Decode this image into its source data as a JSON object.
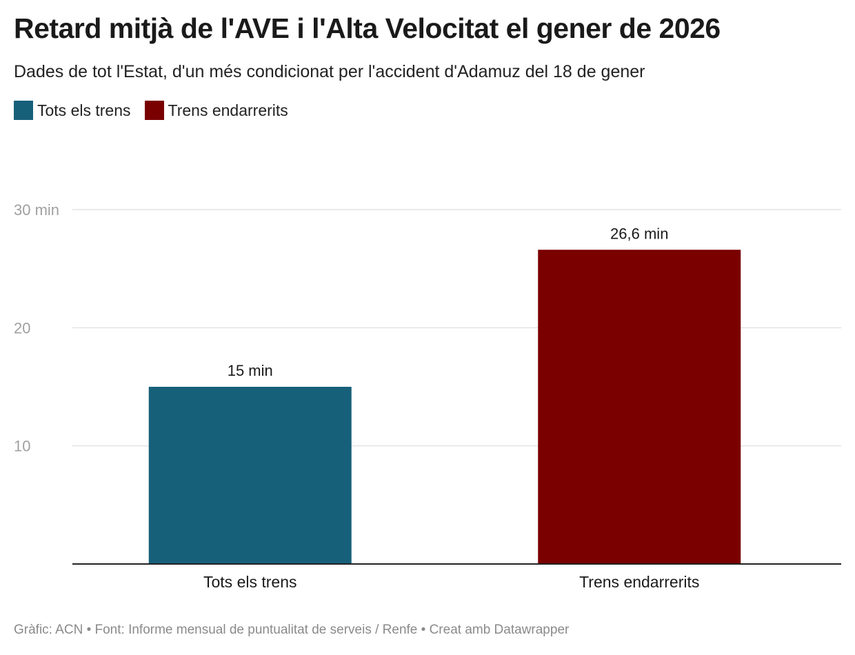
{
  "header": {
    "title": "Retard mitjà de l'AVE i l'Alta Velocitat el gener de 2026",
    "subtitle": "Dades de tot l'Estat, d'un més condicionat per l'accident d'Adamuz del 18 de gener"
  },
  "legend": [
    {
      "label": "Tots els trens",
      "color": "#17607a"
    },
    {
      "label": "Trens endarrerits",
      "color": "#7a0000"
    }
  ],
  "chart_data": {
    "type": "bar",
    "title": "Retard mitjà de l'AVE i l'Alta Velocitat el gener de 2026",
    "subtitle": "Dades de tot l'Estat, d'un més condicionat per l'accident d'Adamuz del 18 de gener",
    "categories": [
      "Tots els trens",
      "Trens endarrerits"
    ],
    "values": [
      15,
      26.6
    ],
    "value_labels": [
      "15 min",
      "26,6 min"
    ],
    "colors": [
      "#17607a",
      "#7a0000"
    ],
    "ylim": [
      0,
      30
    ],
    "yticks": [
      {
        "value": 10,
        "label": "10"
      },
      {
        "value": 20,
        "label": "20"
      },
      {
        "value": 30,
        "label": "30 min"
      }
    ],
    "grid": true,
    "legend_position": "top-left",
    "xlabel": "",
    "ylabel": ""
  },
  "footer": {
    "text": "Gràfic: ACN • Font: Informe mensual de puntualitat de serveis / Renfe • Creat amb Datawrapper"
  }
}
